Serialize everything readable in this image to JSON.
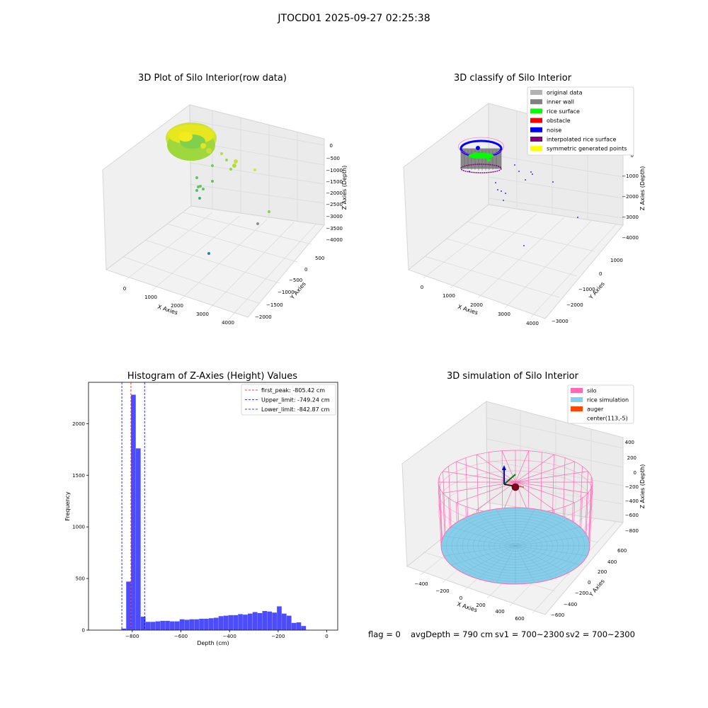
{
  "figure": {
    "suptitle": "JTOCD01 2025-09-27 02:25:38",
    "footer": {
      "flag": "flag = 0",
      "avg": "avgDepth = 790 cm",
      "sv1": "sv1 = 700~2300",
      "sv2": "sv2 = 700~2300"
    }
  },
  "panels": {
    "raw": {
      "title": "3D Plot of Silo Interior(row data)",
      "xlabel": "X Axies",
      "ylabel": "Y Axies",
      "zlabel": "Z Axies (Depth)",
      "xticks": [
        "0",
        "1000",
        "2000",
        "3000",
        "4000"
      ],
      "yticks": [
        "500",
        "0",
        "−500",
        "−1000",
        "−1500",
        "−2000"
      ],
      "zticks": [
        "0",
        "−500",
        "−1000",
        "−1500",
        "−2000",
        "−2500",
        "−3000",
        "−3500",
        "−4000"
      ]
    },
    "classify": {
      "title": "3D classify of Silo Interior",
      "xlabel": "X Axies",
      "ylabel": "Y Axies",
      "zlabel": "Z Axies (Depth)",
      "xticks": [
        "0",
        "1000",
        "2000",
        "3000",
        "4000"
      ],
      "yticks": [
        "1000",
        "0",
        "−1000",
        "−2000",
        "−3000"
      ],
      "zticks": [
        "0",
        "−1000",
        "−2000",
        "−3000",
        "−4000"
      ],
      "legend": [
        {
          "label": "original data",
          "color": "#b3b3b3"
        },
        {
          "label": "inner wall",
          "color": "#808080"
        },
        {
          "label": "rice surface",
          "color": "#00ff00"
        },
        {
          "label": "obstacle",
          "color": "#ff0000"
        },
        {
          "label": "noise",
          "color": "#0000ff"
        },
        {
          "label": "interpolated rice surface",
          "color": "#800080"
        },
        {
          "label": "symmetric generated points",
          "color": "#ffff00"
        }
      ]
    },
    "simulation": {
      "title": "3D simulation of Silo Interior",
      "xlabel": "X Axies",
      "ylabel": "Y Axies",
      "zlabel": "Z Axies (Depth)",
      "xticks": [
        "−400",
        "−200",
        "0",
        "200",
        "400",
        "600"
      ],
      "yticks": [
        "600",
        "400",
        "200",
        "0",
        "−200",
        "−400",
        "−600"
      ],
      "zticks": [
        "400",
        "200",
        "0",
        "−200",
        "−400",
        "−600",
        "−800"
      ],
      "legend": [
        {
          "label": "silo",
          "color": "#ff69b4"
        },
        {
          "label": "rice simulation",
          "color": "#87ceeb"
        },
        {
          "label": "auger",
          "color": "#ff4500"
        },
        {
          "label": "center(113,-5)",
          "color": ""
        }
      ]
    }
  },
  "chart_data": {
    "type": "bar",
    "title": "Histogram of Z-Axies (Height) Values",
    "xlabel": "Depth (cm)",
    "ylabel": "Frequency",
    "xlim": [
      -980,
      45
    ],
    "ylim": [
      0,
      2400
    ],
    "xticks": [
      -800,
      -600,
      -400,
      -200,
      0
    ],
    "xtick_labels": [
      "−800",
      "−600",
      "−400",
      "−200",
      "0"
    ],
    "yticks": [
      0,
      500,
      1000,
      1500,
      2000
    ],
    "bar_color": "#0000ff",
    "bins_start": -845,
    "bin_width": 20,
    "values": [
      15,
      470,
      2280,
      1760,
      130,
      80,
      80,
      85,
      90,
      90,
      85,
      85,
      105,
      100,
      105,
      105,
      110,
      110,
      115,
      120,
      135,
      140,
      145,
      145,
      155,
      150,
      160,
      175,
      165,
      185,
      180,
      170,
      230,
      160,
      140,
      70,
      75,
      40
    ],
    "lines": [
      {
        "label": "first_peak: -805.42 cm",
        "x": -805.42,
        "color": "#ff0000"
      },
      {
        "label": "Upper_limit: -749.24 cm",
        "x": -749.24,
        "color": "#0000cc"
      },
      {
        "label": "Lower_limit: -842.87 cm",
        "x": -842.87,
        "color": "#0000cc"
      }
    ],
    "legend_position": "top-right"
  }
}
